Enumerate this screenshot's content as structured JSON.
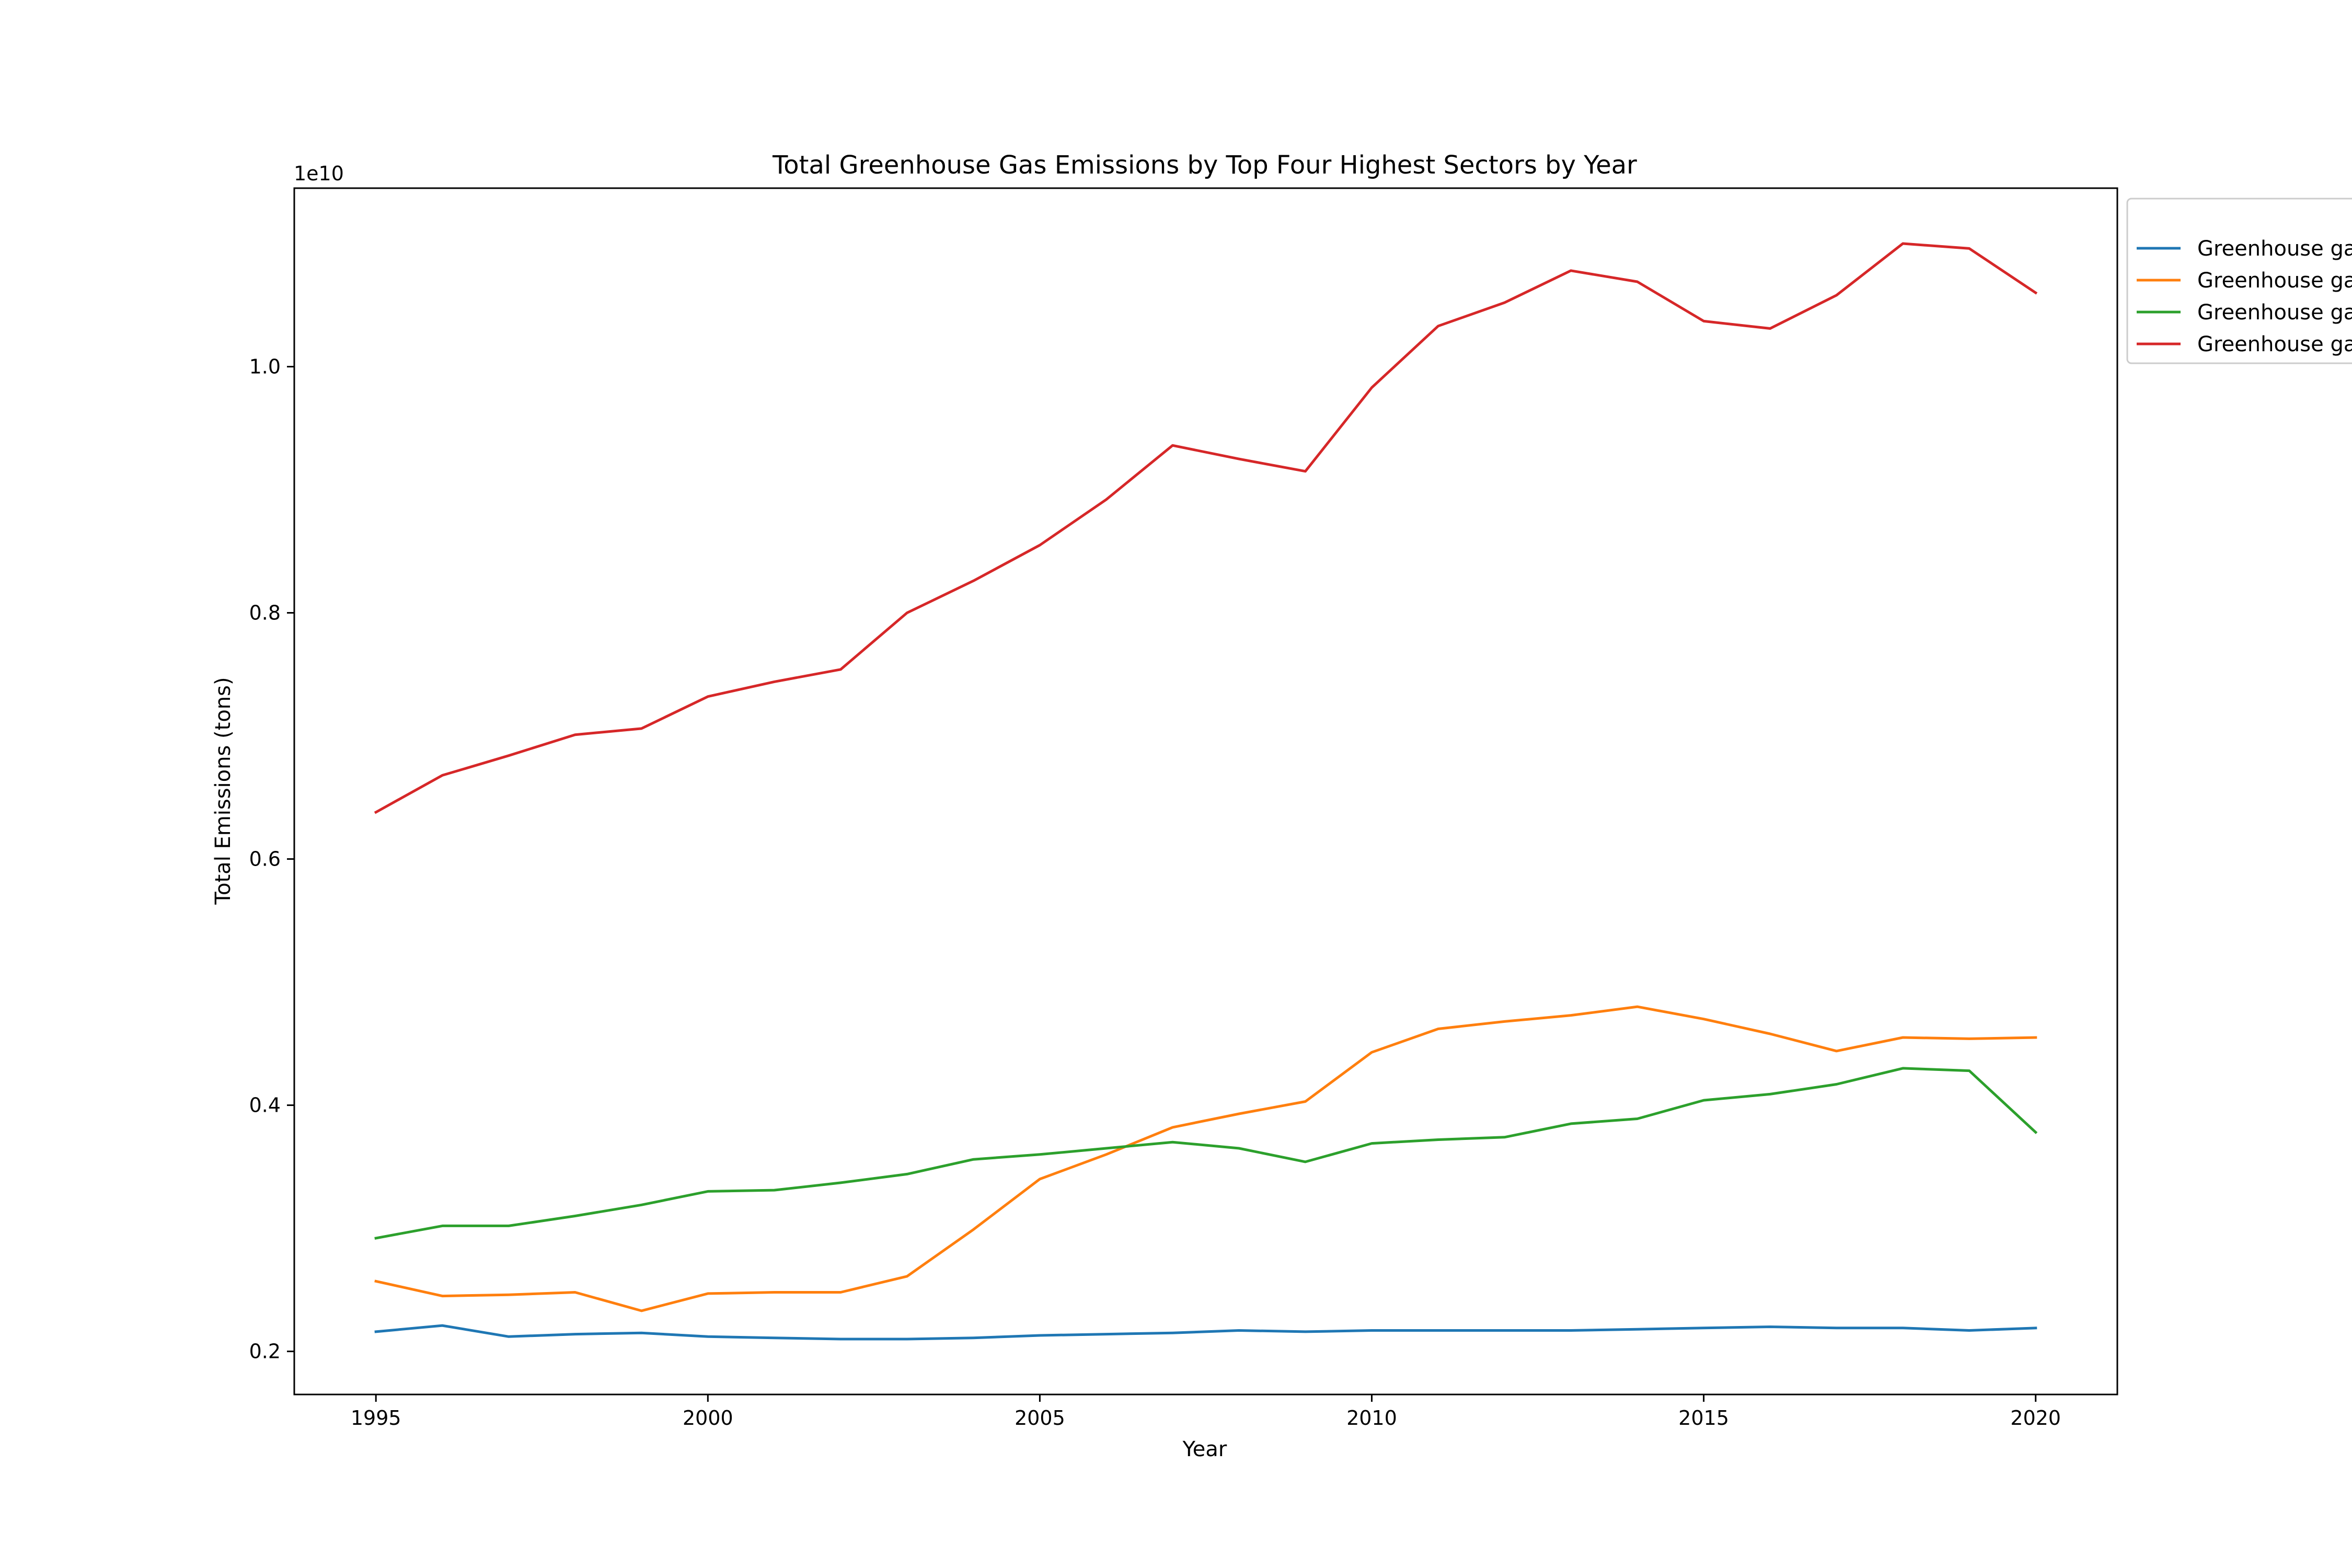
{
  "chart_data": {
    "type": "line",
    "title": "Total Greenhouse Gas Emissions by Top Four Highest Sectors by Year",
    "xlabel": "Year",
    "ylabel": "Total Emissions (tons)",
    "offset_label": "1e10",
    "x": [
      1995,
      1996,
      1997,
      1998,
      1999,
      2000,
      2001,
      2002,
      2003,
      2004,
      2005,
      2006,
      2007,
      2008,
      2009,
      2010,
      2011,
      2012,
      2013,
      2014,
      2015,
      2016,
      2017,
      2018,
      2019,
      2020
    ],
    "xlim": [
      1993.77,
      2021.23
    ],
    "ylim": [
      0.165,
      1.145
    ],
    "x_ticks": [
      1995,
      2000,
      2005,
      2010,
      2015,
      2020
    ],
    "y_ticks": [
      0.2,
      0.4,
      0.6,
      0.8,
      1.0
    ],
    "y_tick_labels": [
      "0.2",
      "0.4",
      "0.6",
      "0.8",
      "1.0"
    ],
    "grid": false,
    "legend_position": "top-right, outside plot (clipped)",
    "series": [
      {
        "name": "Greenhouse ga",
        "color": "#1f77b4",
        "values": [
          0.216,
          0.221,
          0.212,
          0.214,
          0.215,
          0.212,
          0.211,
          0.21,
          0.21,
          0.211,
          0.213,
          0.214,
          0.215,
          0.217,
          0.216,
          0.217,
          0.217,
          0.217,
          0.217,
          0.218,
          0.219,
          0.22,
          0.219,
          0.219,
          0.217,
          0.219
        ]
      },
      {
        "name": "Greenhouse ga",
        "color": "#ff7f0e",
        "values": [
          0.257,
          0.245,
          0.246,
          0.248,
          0.233,
          0.247,
          0.248,
          0.248,
          0.261,
          0.299,
          0.34,
          0.36,
          0.382,
          0.393,
          0.403,
          0.443,
          0.462,
          0.468,
          0.473,
          0.48,
          0.47,
          0.458,
          0.444,
          0.455,
          0.454,
          0.455
        ]
      },
      {
        "name": "Greenhouse ga",
        "color": "#2ca02c",
        "values": [
          0.292,
          0.302,
          0.302,
          0.31,
          0.319,
          0.33,
          0.331,
          0.337,
          0.344,
          0.356,
          0.36,
          0.365,
          0.37,
          0.365,
          0.354,
          0.369,
          0.372,
          0.374,
          0.385,
          0.389,
          0.404,
          0.409,
          0.417,
          0.43,
          0.428,
          0.378
        ]
      },
      {
        "name": "Greenhouse ga",
        "color": "#d62728",
        "values": [
          0.638,
          0.668,
          0.684,
          0.701,
          0.706,
          0.732,
          0.744,
          0.754,
          0.8,
          0.826,
          0.855,
          0.892,
          0.936,
          0.925,
          0.915,
          0.983,
          1.033,
          1.052,
          1.078,
          1.069,
          1.037,
          1.031,
          1.058,
          1.1,
          1.096,
          1.06
        ]
      }
    ]
  }
}
